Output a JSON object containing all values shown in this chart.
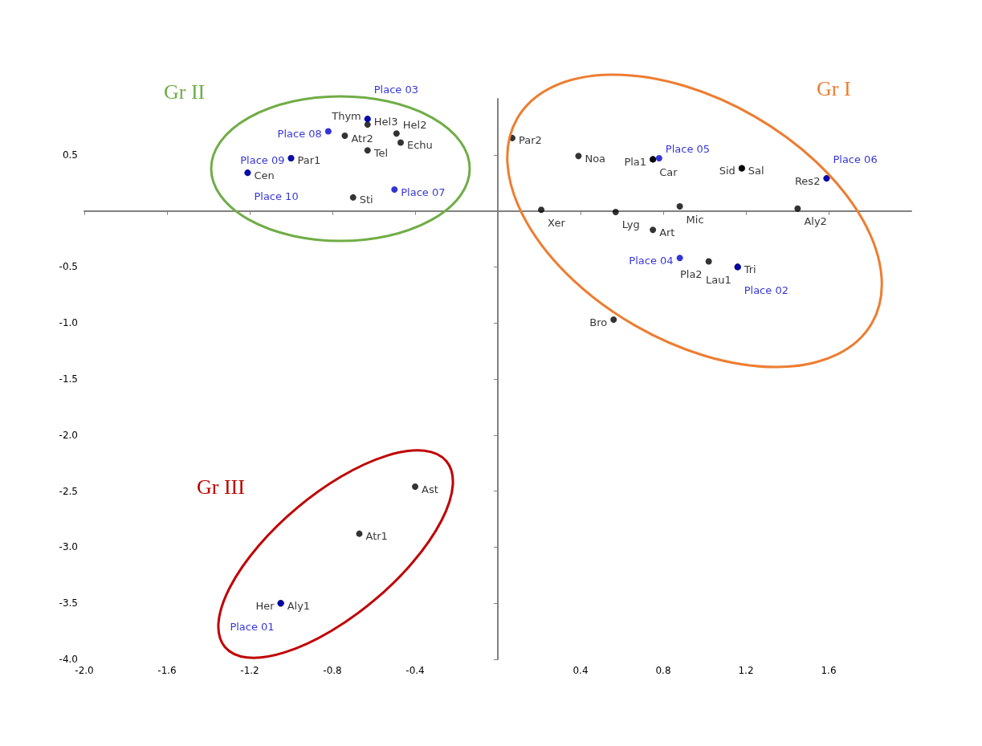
{
  "chart_data": {
    "type": "scatter",
    "xlim": [
      -2.0,
      2.0
    ],
    "xticks": [
      {
        "value": -2.0,
        "label": "-2.0"
      },
      -1.6,
      -1.2,
      -0.8,
      -0.4,
      0.4,
      0.8,
      1.2,
      1.6
    ],
    "ylim": [
      -4.0,
      1.0
    ],
    "yticks": [
      0.5,
      -0.5,
      {
        "value": -1.0,
        "label": "-1.0"
      },
      -1.5,
      {
        "value": -2.0,
        "label": "-2.0"
      },
      -2.5,
      {
        "value": -3.0,
        "label": "-3.0"
      },
      -3.5,
      {
        "value": -4.0,
        "label": "-4.0"
      }
    ],
    "grid": false,
    "legend": false,
    "marker": "circle",
    "annotations": [
      "Gr I",
      "Gr II",
      "Gr III"
    ],
    "series": [
      {
        "color": "#000000",
        "x": [
          -0.63,
          -0.63,
          -0.74,
          -0.49,
          -0.47,
          -0.63,
          -1.0,
          -1.21,
          -0.7,
          0.07,
          0.39,
          0.75,
          0.75,
          1.18,
          1.18,
          1.59,
          0.21,
          0.57,
          0.88,
          1.45,
          0.75,
          1.02,
          1.16,
          1.16,
          0.56,
          -0.4,
          -0.67,
          -1.05,
          -1.05
        ],
        "values": [
          0.82,
          0.77,
          0.67,
          0.69,
          0.61,
          0.54,
          0.47,
          0.34,
          0.12,
          0.65,
          0.49,
          0.46,
          0.46,
          0.38,
          0.38,
          0.29,
          0.01,
          -0.01,
          0.04,
          0.02,
          -0.17,
          -0.45,
          -0.5,
          -0.5,
          -0.97,
          -2.46,
          -2.88,
          -3.5,
          -3.5
        ],
        "value_labels": [
          "Hel3",
          "Thym",
          "Atr2",
          "Hel2",
          "Echu",
          "Tel",
          "Par1",
          "Cen",
          "Sti",
          "Par2",
          "Noa",
          "Pla1",
          "Car",
          "Sal",
          "Sid",
          "Res2",
          "Xer",
          "Lyg",
          "Mic",
          "Aly2",
          "Art",
          "Pla2",
          "Tri",
          "Lau1",
          "Bro",
          "Ast",
          "Atr1",
          "Aly1",
          "Her"
        ]
      },
      {
        "color": "#0000cc",
        "x": [
          -1.05,
          1.16,
          -0.63,
          0.88,
          0.78,
          1.59,
          -0.5,
          -0.82,
          -1.0,
          -1.21
        ],
        "values": [
          -3.5,
          -0.5,
          0.82,
          -0.42,
          0.47,
          0.29,
          0.19,
          0.71,
          0.47,
          0.34
        ],
        "value_labels": [
          "Place 01",
          "Place 02",
          "Place 03",
          "Place 04",
          "Place 05",
          "Place 06",
          "Place 07",
          "Place 08",
          "Place 09",
          "Place 10"
        ]
      }
    ]
  }
}
